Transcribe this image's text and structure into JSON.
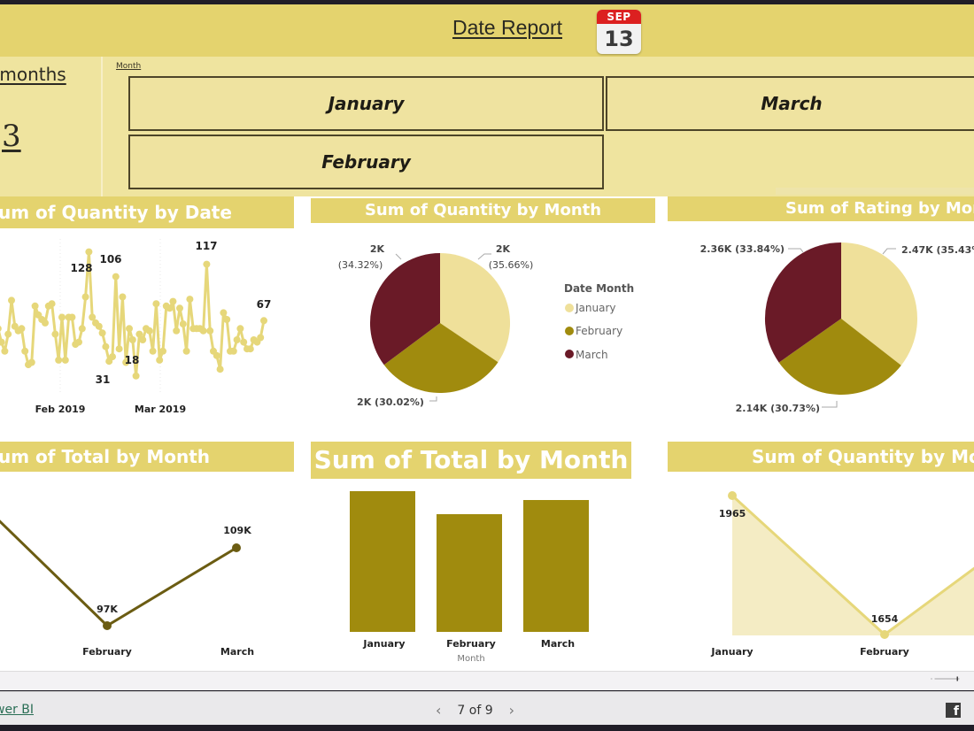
{
  "header": {
    "title": "Date Report",
    "calendar_icon": {
      "month": "SEP",
      "day": "13"
    }
  },
  "kpi": {
    "label": "Count of months",
    "label_visible": "f months",
    "value": "3"
  },
  "slicer": {
    "caption": "Month",
    "options": [
      {
        "label": "January",
        "selected": false
      },
      {
        "label": "March",
        "selected": false
      },
      {
        "label": "February",
        "selected": false
      }
    ]
  },
  "visuals": {
    "qty_by_date": {
      "title": "Sum of Quantity by Date",
      "title_visible": "um of Quantity by Date"
    },
    "qty_pie": {
      "title": "Sum of Quantity by Month"
    },
    "rating_pie": {
      "title": "Sum of Rating by Month",
      "title_visible": "Sum of Rating by Mont"
    },
    "total_line": {
      "title": "Sum of Total by Month",
      "title_visible": "um of Total by Month"
    },
    "total_bar": {
      "title": "Sum of Total by Month"
    },
    "qty_area": {
      "title": "Sum of Quantity by Month",
      "title_visible": "Sum of Quantity by Mo"
    }
  },
  "colors": {
    "header_bg": "#e4d36e",
    "panel_bg": "#efe49f",
    "january": "#efe09a",
    "february": "#a08b0e",
    "march": "#6a1a27",
    "line_dark": "#6b5c12",
    "line_light": "#e6d77a"
  },
  "chart_data": [
    {
      "type": "line",
      "title": "Sum of Quantity by Date",
      "xlabel": "",
      "ylabel": "",
      "x_ticks": [
        "Feb 2019",
        "Mar 2019"
      ],
      "annotations": [
        {
          "label": "128",
          "note": "peak early Feb"
        },
        {
          "label": "106",
          "note": "mid Feb"
        },
        {
          "label": "31",
          "note": "late Feb low"
        },
        {
          "label": "18",
          "note": "minimum, late Feb"
        },
        {
          "label": "117",
          "note": "peak mid Mar"
        },
        {
          "label": "67",
          "note": "last point"
        }
      ],
      "values": [
        75,
        60,
        48,
        40,
        55,
        85,
        62,
        58,
        60,
        40,
        28,
        30,
        80,
        72,
        68,
        65,
        80,
        82,
        55,
        32,
        70,
        32,
        70,
        70,
        46,
        48,
        60,
        88,
        128,
        70,
        65,
        62,
        56,
        44,
        31,
        35,
        106,
        42,
        88,
        30,
        60,
        50,
        18,
        55,
        50,
        60,
        58,
        40,
        82,
        32,
        40,
        80,
        78,
        84,
        58,
        78,
        64,
        40,
        86,
        60,
        60,
        60,
        58,
        117,
        58,
        40,
        36,
        24,
        74,
        68,
        40,
        40,
        50,
        60,
        48,
        42,
        42,
        50,
        48,
        52,
        67
      ],
      "grid": false
    },
    {
      "type": "pie",
      "title": "Sum of Quantity by Month",
      "legend_title": "Date Month",
      "legend_position": "right",
      "categories": [
        "January",
        "February",
        "March"
      ],
      "values": [
        1965,
        1654,
        1891
      ],
      "value_labels": [
        "2K",
        "2K",
        "2K"
      ],
      "percentages": [
        35.66,
        30.02,
        34.32
      ]
    },
    {
      "type": "pie",
      "title": "Sum of Rating by Month",
      "categories": [
        "January",
        "February",
        "March"
      ],
      "value_labels": [
        "2.47K",
        "2.14K",
        "2.36K"
      ],
      "values": [
        2470,
        2140,
        2360
      ],
      "percentages": [
        35.43,
        30.73,
        33.84
      ]
    },
    {
      "type": "line",
      "title": "Sum of Total by Month",
      "categories": [
        "January",
        "February",
        "March"
      ],
      "values": [
        116000,
        97000,
        109000
      ],
      "value_labels": [
        "",
        "97K",
        "109K"
      ],
      "grid": false
    },
    {
      "type": "bar",
      "title": "Sum of Total by Month",
      "xlabel": "Month",
      "ylabel": "",
      "categories": [
        "January",
        "February",
        "March"
      ],
      "values": [
        116000,
        97000,
        109000
      ],
      "grid": false
    },
    {
      "type": "area",
      "title": "Sum of Quantity by Month",
      "categories": [
        "January",
        "February",
        "March"
      ],
      "values": [
        1965,
        1654,
        1891
      ],
      "value_labels": [
        "1965",
        "1654",
        ""
      ],
      "grid": false
    }
  ],
  "chart_text": {
    "date_ticks": [
      "Feb 2019",
      "Mar 2019"
    ],
    "date_labels": [
      "128",
      "106",
      "31",
      "18",
      "117",
      "67"
    ],
    "qpie": {
      "jan_val": "2K",
      "jan_pct": "(35.66%)",
      "mar_val": "2K",
      "mar_pct": "(34.32%)",
      "feb": "2K (30.02%)",
      "legend_title": "Date Month",
      "legend": [
        "January",
        "February",
        "March"
      ]
    },
    "rpie": {
      "jan": "2.47K (35.43%)",
      "mar": "2.36K (33.84%)",
      "feb": "2.14K (30.73%)"
    },
    "tline": {
      "feb_val": "97K",
      "mar_val": "109K",
      "x": [
        "February",
        "March"
      ]
    },
    "tbar": {
      "x": [
        "January",
        "February",
        "March"
      ],
      "xlabel": "Month"
    },
    "qarea": {
      "jan_val": "1965",
      "feb_val": "1654",
      "x": [
        "January",
        "February"
      ]
    }
  },
  "footer": {
    "link": "Microsoft Power BI",
    "link_visible": "wer BI",
    "page_indicator": "7 of 9",
    "prev": "‹",
    "next": "›",
    "share_icon": "facebook-icon",
    "fb_glyph": "f"
  }
}
